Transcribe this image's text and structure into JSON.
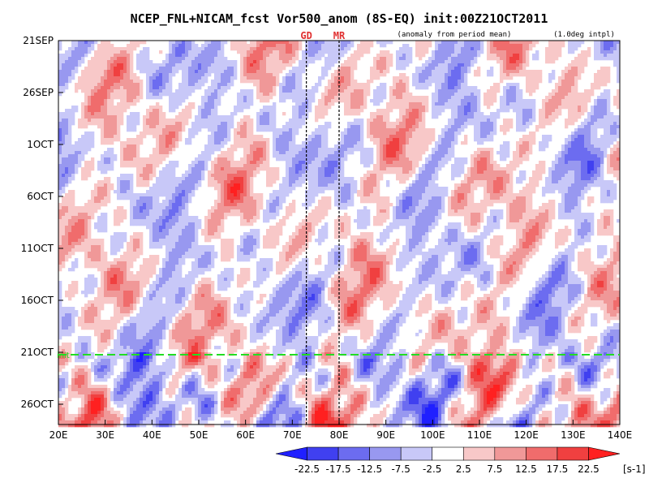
{
  "chart_data": {
    "type": "heatmap",
    "title": "NCEP_FNL+NICAM_fcst Vor500_anom (8S-EQ) init:00Z21OCT2011",
    "subtitle_left": "(anomaly from period mean)",
    "subtitle_right": "(1.0deg intpl)",
    "markers": [
      {
        "label": "GD",
        "lon": 73
      },
      {
        "label": "MR",
        "lon": 80
      }
    ],
    "x_range": [
      20,
      140
    ],
    "x_ticks": [
      {
        "value": 20,
        "label": "20E"
      },
      {
        "value": 30,
        "label": "30E"
      },
      {
        "value": 40,
        "label": "40E"
      },
      {
        "value": 50,
        "label": "50E"
      },
      {
        "value": 60,
        "label": "60E"
      },
      {
        "value": 70,
        "label": "70E"
      },
      {
        "value": 80,
        "label": "80E"
      },
      {
        "value": 90,
        "label": "90E"
      },
      {
        "value": 100,
        "label": "100E"
      },
      {
        "value": 110,
        "label": "110E"
      },
      {
        "value": 120,
        "label": "120E"
      },
      {
        "value": 130,
        "label": "130E"
      },
      {
        "value": 140,
        "label": "140E"
      }
    ],
    "y_range": [
      "21SEP",
      "28OCT"
    ],
    "y_ticks": [
      {
        "day": 0,
        "label": "21SEP"
      },
      {
        "day": 5,
        "label": "26SEP"
      },
      {
        "day": 10,
        "label": "1OCT"
      },
      {
        "day": 15,
        "label": "6OCT"
      },
      {
        "day": 20,
        "label": "11OCT"
      },
      {
        "day": 25,
        "label": "16OCT"
      },
      {
        "day": 30,
        "label": "21OCT"
      },
      {
        "day": 35,
        "label": "26OCT"
      }
    ],
    "init_line": {
      "day": 30,
      "label": "init",
      "color": "#22dd22"
    },
    "colorbar": {
      "unit": "[s-1]",
      "levels": [
        -22.5,
        -17.5,
        -12.5,
        -7.5,
        -2.5,
        2.5,
        7.5,
        12.5,
        17.5,
        22.5
      ],
      "level_labels": [
        "-22.5",
        "-17.5",
        "-12.5",
        "-7.5",
        "-2.5",
        "2.5",
        "7.5",
        "12.5",
        "17.5",
        "22.5"
      ],
      "colors": [
        "#2020ff",
        "#4040f0",
        "#6c6cf0",
        "#9898f0",
        "#c8c8f8",
        "#ffffff",
        "#f8c8c8",
        "#f09898",
        "#f06c6c",
        "#f04040",
        "#ff2020"
      ]
    }
  }
}
